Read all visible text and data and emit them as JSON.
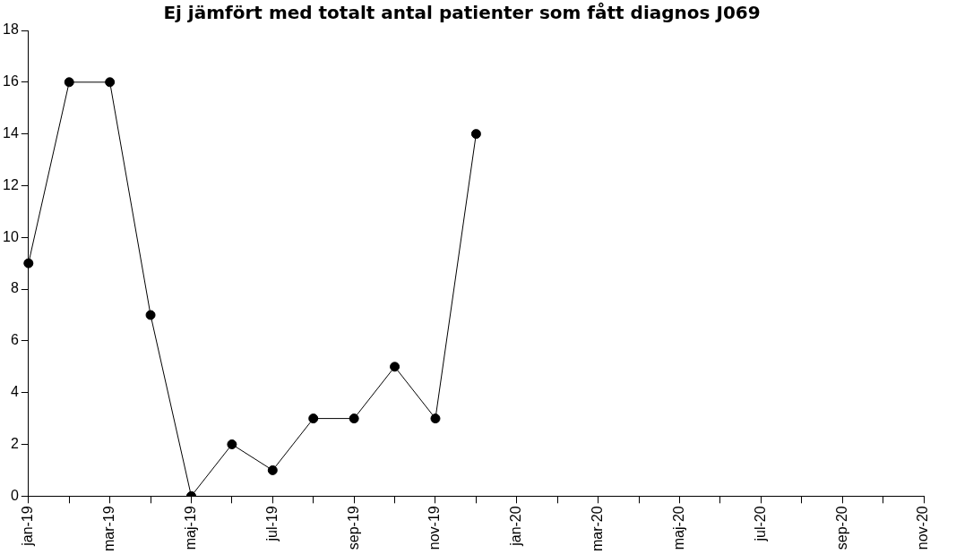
{
  "chart_data": {
    "type": "line",
    "title": "Ej jämfört med totalt antal patienter som fått diagnos J069",
    "categories": [
      "jan-19",
      null,
      "mar-19",
      null,
      "maj-19",
      null,
      "jul-19",
      null,
      "sep-19",
      null,
      "nov-19",
      null,
      "jan-20",
      null,
      "mar-20",
      null,
      "maj-20",
      null,
      "jul-20",
      null,
      "sep-20",
      null,
      "nov-20"
    ],
    "series": [
      {
        "color": "#000000",
        "values": [
          9,
          16,
          16,
          7,
          0,
          2,
          1,
          3,
          3,
          5,
          3,
          14,
          null,
          null,
          null,
          null,
          null,
          null,
          null,
          null,
          null,
          null,
          null
        ]
      }
    ],
    "ylim": [
      0,
      18
    ],
    "yticks": [
      0,
      2,
      4,
      6,
      8,
      10,
      12,
      14,
      16,
      18
    ],
    "grid": false,
    "legend": false,
    "marker": "circle",
    "line_style": "solid"
  }
}
